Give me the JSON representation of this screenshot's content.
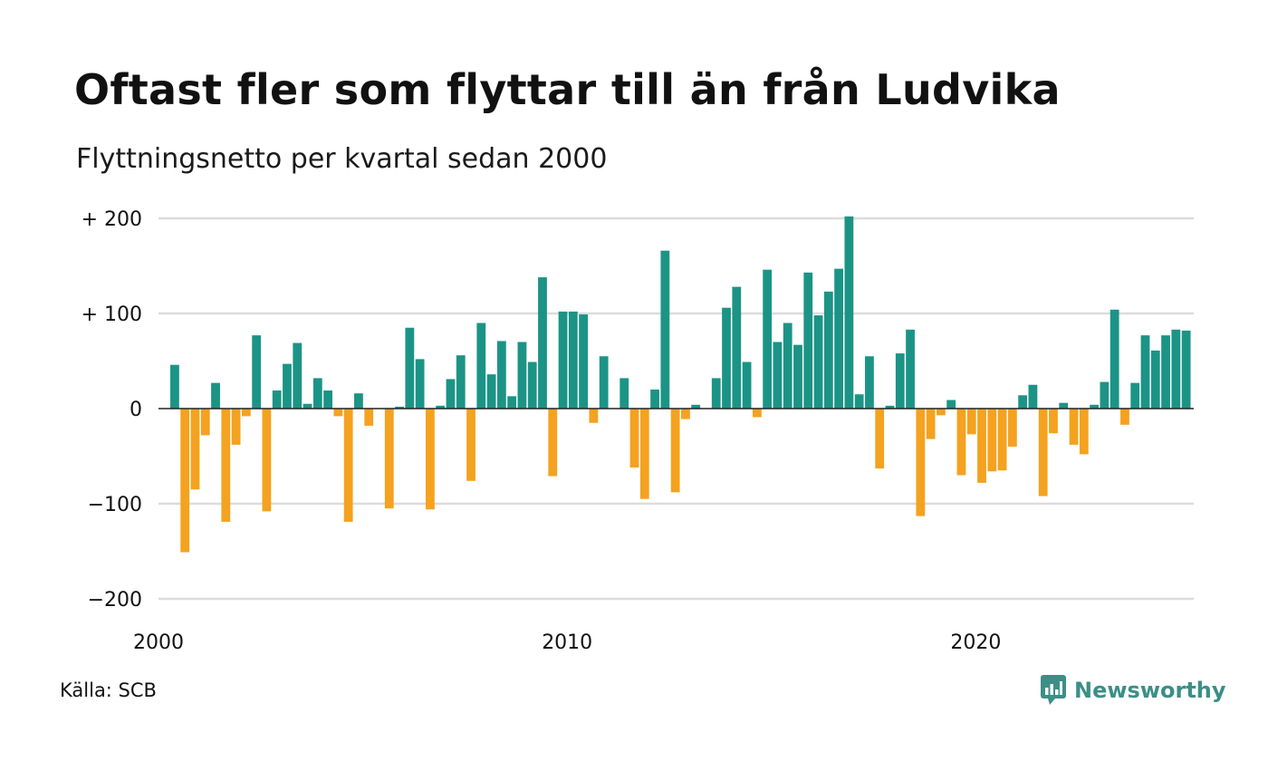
{
  "header": {
    "title": "Oftast fler som flyttar till än från Ludvika",
    "subtitle": "Flyttningsnetto per kvartal sedan 2000"
  },
  "footer": {
    "source": "Källa: SCB",
    "brand": "Newsworthy",
    "brand_icon": "newsworthy-logo-icon"
  },
  "colors": {
    "positive": "#1b9486",
    "negative": "#f4a21f",
    "grid": "#dcdcdc",
    "brand": "#3b8f86"
  },
  "chart_data": {
    "type": "bar",
    "x_start": "2000 Q1",
    "x_ticks": [
      "2000",
      "2010",
      "2020"
    ],
    "y_ticks": [
      "+ 200",
      "+ 100",
      "0",
      "−100",
      "−200"
    ],
    "y_tick_values": [
      200,
      100,
      0,
      -100,
      -200
    ],
    "ylim": [
      -200,
      200
    ],
    "grid": true,
    "values": [
      46,
      -151,
      -85,
      -28,
      27,
      -119,
      -38,
      -8,
      77,
      -108,
      19,
      47,
      69,
      5,
      32,
      19,
      -8,
      -119,
      16,
      -18,
      0,
      -105,
      2,
      85,
      52,
      -106,
      3,
      31,
      56,
      -76,
      90,
      36,
      71,
      13,
      70,
      49,
      138,
      -71,
      102,
      102,
      99,
      -15,
      55,
      0,
      32,
      -62,
      -95,
      20,
      166,
      -88,
      -11,
      4,
      0,
      32,
      106,
      128,
      49,
      -9,
      146,
      70,
      90,
      67,
      143,
      98,
      123,
      147,
      202,
      15,
      55,
      -63,
      3,
      58,
      83,
      -113,
      -32,
      -7,
      9,
      -70,
      -27,
      -78,
      -66,
      -65,
      -40,
      14,
      25,
      -92,
      -26,
      6,
      -38,
      -48,
      4,
      28,
      104,
      -17,
      27,
      77,
      61,
      77,
      83,
      82
    ]
  }
}
